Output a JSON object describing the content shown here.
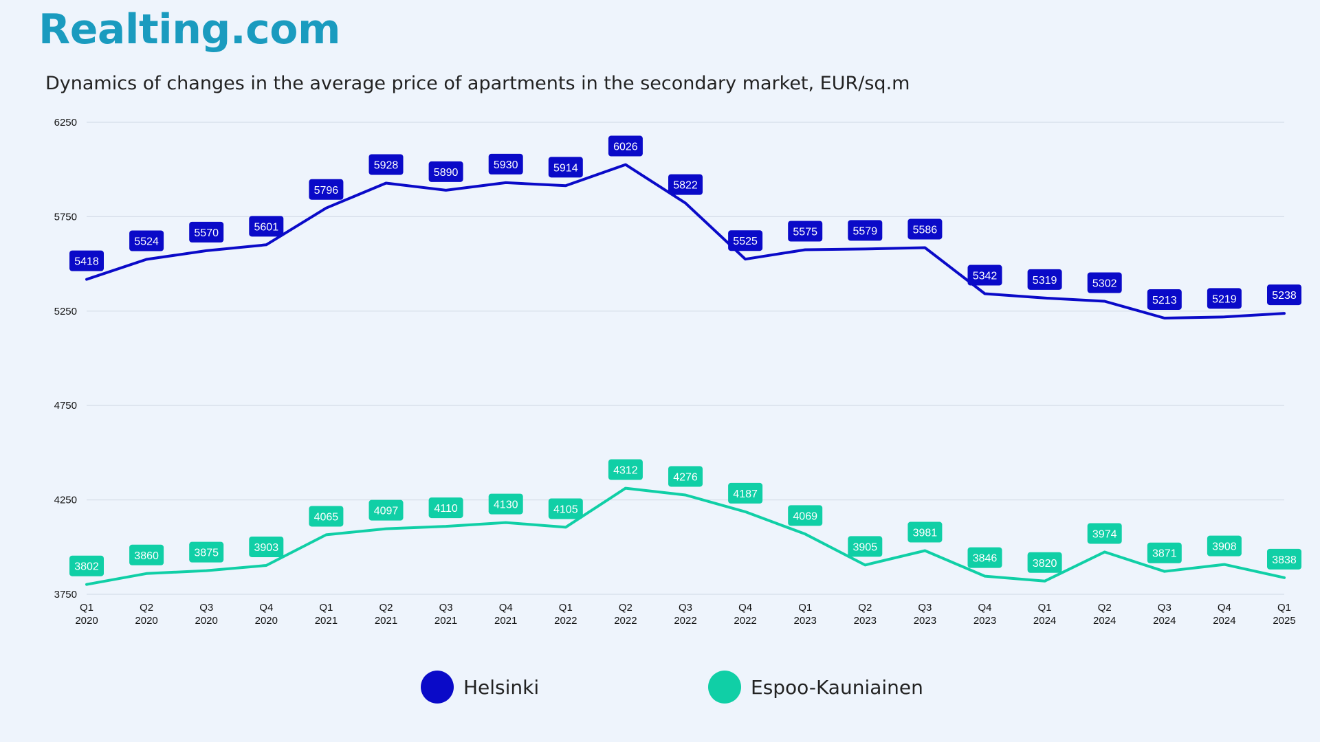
{
  "brand": {
    "logo_text": "Realting.com"
  },
  "colors": {
    "helsinki": "#0a0ac8",
    "espoo": "#10cfa6",
    "grid": "#d5dde8"
  },
  "chart_data": {
    "type": "line",
    "title": "Dynamics of changes in the average price of apartments in the secondary market, EUR/sq.m",
    "xlabel": "",
    "ylabel": "",
    "ylim": [
      3750,
      6250
    ],
    "yticks": [
      3750,
      4250,
      4750,
      5250,
      5750,
      6250
    ],
    "grid": true,
    "legend_position": "bottom-center",
    "categories": [
      [
        "Q1",
        "2020"
      ],
      [
        "Q2",
        "2020"
      ],
      [
        "Q3",
        "2020"
      ],
      [
        "Q4",
        "2020"
      ],
      [
        "Q1",
        "2021"
      ],
      [
        "Q2",
        "2021"
      ],
      [
        "Q3",
        "2021"
      ],
      [
        "Q4",
        "2021"
      ],
      [
        "Q1",
        "2022"
      ],
      [
        "Q2",
        "2022"
      ],
      [
        "Q3",
        "2022"
      ],
      [
        "Q4",
        "2022"
      ],
      [
        "Q1",
        "2023"
      ],
      [
        "Q2",
        "2023"
      ],
      [
        "Q3",
        "2023"
      ],
      [
        "Q4",
        "2023"
      ],
      [
        "Q1",
        "2024"
      ],
      [
        "Q2",
        "2024"
      ],
      [
        "Q3",
        "2024"
      ],
      [
        "Q4",
        "2024"
      ],
      [
        "Q1",
        "2025"
      ]
    ],
    "series": [
      {
        "name": "Helsinki",
        "values": [
          5418,
          5524,
          5570,
          5601,
          5796,
          5928,
          5890,
          5930,
          5914,
          6026,
          5822,
          5525,
          5575,
          5579,
          5586,
          5342,
          5319,
          5302,
          5213,
          5219,
          5238
        ]
      },
      {
        "name": "Espoo-Kauniainen",
        "values": [
          3802,
          3860,
          3875,
          3903,
          4065,
          4097,
          4110,
          4130,
          4105,
          4312,
          4276,
          4187,
          4069,
          3905,
          3981,
          3846,
          3820,
          3974,
          3871,
          3908,
          3838
        ]
      }
    ]
  }
}
